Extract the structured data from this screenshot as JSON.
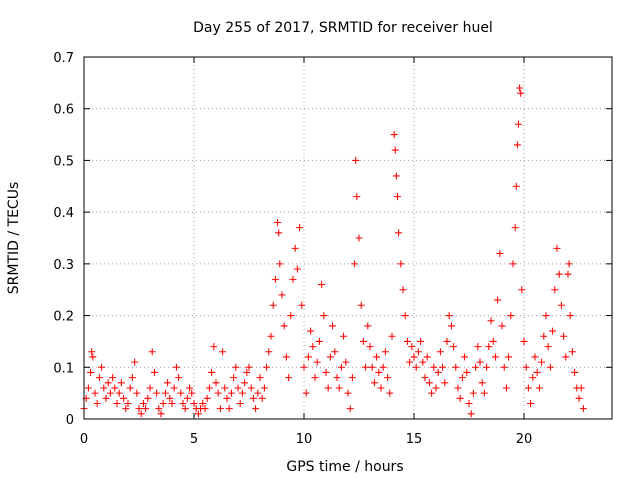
{
  "chart_data": {
    "type": "scatter",
    "title": "Day 255 of 2017, SRMTID for receiver huel",
    "xlabel": "GPS time / hours",
    "ylabel": "SRMTID / TECUs",
    "xlim": [
      0,
      24
    ],
    "ylim": [
      0,
      0.7
    ],
    "xticks": [
      0,
      5,
      10,
      15,
      20
    ],
    "yticks": [
      0,
      0.1,
      0.2,
      0.3,
      0.4,
      0.5,
      0.6,
      0.7
    ],
    "xtick_labels": [
      "0",
      "5",
      "10",
      "15",
      "20"
    ],
    "ytick_labels": [
      "0",
      "0.1",
      "0.2",
      "0.3",
      "0.4",
      "0.5",
      "0.6",
      "0.7"
    ],
    "grid": true,
    "marker": "+",
    "color": "#ff0000",
    "series": [
      {
        "name": "SRMTID",
        "points": [
          [
            0.0,
            0.02
          ],
          [
            0.1,
            0.04
          ],
          [
            0.2,
            0.06
          ],
          [
            0.3,
            0.09
          ],
          [
            0.35,
            0.13
          ],
          [
            0.4,
            0.12
          ],
          [
            0.5,
            0.05
          ],
          [
            0.6,
            0.03
          ],
          [
            0.7,
            0.08
          ],
          [
            0.8,
            0.1
          ],
          [
            0.9,
            0.06
          ],
          [
            1.0,
            0.04
          ],
          [
            1.1,
            0.07
          ],
          [
            1.2,
            0.05
          ],
          [
            1.3,
            0.08
          ],
          [
            1.4,
            0.06
          ],
          [
            1.5,
            0.03
          ],
          [
            1.6,
            0.05
          ],
          [
            1.7,
            0.07
          ],
          [
            1.8,
            0.04
          ],
          [
            1.9,
            0.02
          ],
          [
            2.0,
            0.03
          ],
          [
            2.1,
            0.06
          ],
          [
            2.2,
            0.08
          ],
          [
            2.3,
            0.11
          ],
          [
            2.4,
            0.05
          ],
          [
            2.5,
            0.02
          ],
          [
            2.6,
            0.01
          ],
          [
            2.7,
            0.03
          ],
          [
            2.8,
            0.02
          ],
          [
            2.9,
            0.04
          ],
          [
            3.0,
            0.06
          ],
          [
            3.1,
            0.13
          ],
          [
            3.2,
            0.09
          ],
          [
            3.3,
            0.05
          ],
          [
            3.4,
            0.02
          ],
          [
            3.5,
            0.01
          ],
          [
            3.6,
            0.03
          ],
          [
            3.7,
            0.05
          ],
          [
            3.8,
            0.07
          ],
          [
            3.9,
            0.04
          ],
          [
            4.0,
            0.03
          ],
          [
            4.1,
            0.06
          ],
          [
            4.2,
            0.1
          ],
          [
            4.3,
            0.08
          ],
          [
            4.4,
            0.05
          ],
          [
            4.5,
            0.03
          ],
          [
            4.6,
            0.02
          ],
          [
            4.7,
            0.04
          ],
          [
            4.8,
            0.06
          ],
          [
            4.9,
            0.05
          ],
          [
            5.0,
            0.03
          ],
          [
            5.1,
            0.02
          ],
          [
            5.2,
            0.01
          ],
          [
            5.3,
            0.02
          ],
          [
            5.4,
            0.03
          ],
          [
            5.5,
            0.02
          ],
          [
            5.6,
            0.04
          ],
          [
            5.7,
            0.06
          ],
          [
            5.8,
            0.09
          ],
          [
            5.9,
            0.14
          ],
          [
            6.0,
            0.07
          ],
          [
            6.1,
            0.05
          ],
          [
            6.2,
            0.02
          ],
          [
            6.3,
            0.13
          ],
          [
            6.4,
            0.06
          ],
          [
            6.5,
            0.04
          ],
          [
            6.6,
            0.02
          ],
          [
            6.7,
            0.05
          ],
          [
            6.8,
            0.08
          ],
          [
            6.9,
            0.1
          ],
          [
            7.0,
            0.06
          ],
          [
            7.1,
            0.03
          ],
          [
            7.2,
            0.05
          ],
          [
            7.3,
            0.07
          ],
          [
            7.4,
            0.09
          ],
          [
            7.5,
            0.1
          ],
          [
            7.6,
            0.06
          ],
          [
            7.7,
            0.04
          ],
          [
            7.8,
            0.02
          ],
          [
            7.9,
            0.05
          ],
          [
            8.0,
            0.08
          ],
          [
            8.1,
            0.04
          ],
          [
            8.2,
            0.06
          ],
          [
            8.3,
            0.1
          ],
          [
            8.4,
            0.13
          ],
          [
            8.5,
            0.16
          ],
          [
            8.6,
            0.22
          ],
          [
            8.7,
            0.27
          ],
          [
            8.8,
            0.38
          ],
          [
            8.85,
            0.36
          ],
          [
            8.9,
            0.3
          ],
          [
            9.0,
            0.24
          ],
          [
            9.1,
            0.18
          ],
          [
            9.2,
            0.12
          ],
          [
            9.3,
            0.08
          ],
          [
            9.4,
            0.2
          ],
          [
            9.5,
            0.27
          ],
          [
            9.6,
            0.33
          ],
          [
            9.7,
            0.29
          ],
          [
            9.8,
            0.37
          ],
          [
            9.9,
            0.22
          ],
          [
            10.0,
            0.1
          ],
          [
            10.1,
            0.05
          ],
          [
            10.2,
            0.12
          ],
          [
            10.3,
            0.17
          ],
          [
            10.4,
            0.14
          ],
          [
            10.5,
            0.08
          ],
          [
            10.6,
            0.11
          ],
          [
            10.7,
            0.15
          ],
          [
            10.8,
            0.26
          ],
          [
            10.9,
            0.2
          ],
          [
            11.0,
            0.09
          ],
          [
            11.1,
            0.06
          ],
          [
            11.2,
            0.12
          ],
          [
            11.3,
            0.18
          ],
          [
            11.4,
            0.13
          ],
          [
            11.5,
            0.08
          ],
          [
            11.6,
            0.06
          ],
          [
            11.7,
            0.1
          ],
          [
            11.8,
            0.16
          ],
          [
            11.9,
            0.11
          ],
          [
            12.0,
            0.05
          ],
          [
            12.1,
            0.02
          ],
          [
            12.2,
            0.08
          ],
          [
            12.3,
            0.3
          ],
          [
            12.35,
            0.5
          ],
          [
            12.4,
            0.43
          ],
          [
            12.5,
            0.35
          ],
          [
            12.6,
            0.22
          ],
          [
            12.7,
            0.15
          ],
          [
            12.8,
            0.1
          ],
          [
            12.9,
            0.18
          ],
          [
            13.0,
            0.14
          ],
          [
            13.1,
            0.1
          ],
          [
            13.2,
            0.07
          ],
          [
            13.3,
            0.12
          ],
          [
            13.4,
            0.09
          ],
          [
            13.5,
            0.06
          ],
          [
            13.6,
            0.1
          ],
          [
            13.7,
            0.13
          ],
          [
            13.8,
            0.08
          ],
          [
            13.9,
            0.05
          ],
          [
            14.0,
            0.16
          ],
          [
            14.1,
            0.55
          ],
          [
            14.15,
            0.52
          ],
          [
            14.2,
            0.47
          ],
          [
            14.25,
            0.43
          ],
          [
            14.3,
            0.36
          ],
          [
            14.4,
            0.3
          ],
          [
            14.5,
            0.25
          ],
          [
            14.6,
            0.2
          ],
          [
            14.7,
            0.15
          ],
          [
            14.8,
            0.11
          ],
          [
            14.9,
            0.14
          ],
          [
            15.0,
            0.12
          ],
          [
            15.1,
            0.1
          ],
          [
            15.2,
            0.13
          ],
          [
            15.3,
            0.15
          ],
          [
            15.4,
            0.11
          ],
          [
            15.5,
            0.08
          ],
          [
            15.6,
            0.12
          ],
          [
            15.7,
            0.07
          ],
          [
            15.8,
            0.05
          ],
          [
            15.9,
            0.1
          ],
          [
            16.0,
            0.06
          ],
          [
            16.1,
            0.09
          ],
          [
            16.2,
            0.13
          ],
          [
            16.3,
            0.1
          ],
          [
            16.4,
            0.07
          ],
          [
            16.5,
            0.15
          ],
          [
            16.6,
            0.2
          ],
          [
            16.7,
            0.18
          ],
          [
            16.8,
            0.14
          ],
          [
            16.9,
            0.1
          ],
          [
            17.0,
            0.06
          ],
          [
            17.1,
            0.04
          ],
          [
            17.2,
            0.08
          ],
          [
            17.3,
            0.12
          ],
          [
            17.4,
            0.09
          ],
          [
            17.5,
            0.03
          ],
          [
            17.6,
            0.01
          ],
          [
            17.7,
            0.05
          ],
          [
            17.8,
            0.1
          ],
          [
            17.9,
            0.14
          ],
          [
            18.0,
            0.11
          ],
          [
            18.1,
            0.07
          ],
          [
            18.2,
            0.05
          ],
          [
            18.3,
            0.1
          ],
          [
            18.4,
            0.14
          ],
          [
            18.5,
            0.19
          ],
          [
            18.6,
            0.15
          ],
          [
            18.7,
            0.12
          ],
          [
            18.8,
            0.23
          ],
          [
            18.9,
            0.32
          ],
          [
            19.0,
            0.18
          ],
          [
            19.1,
            0.1
          ],
          [
            19.2,
            0.06
          ],
          [
            19.3,
            0.12
          ],
          [
            19.4,
            0.2
          ],
          [
            19.5,
            0.3
          ],
          [
            19.6,
            0.37
          ],
          [
            19.65,
            0.45
          ],
          [
            19.7,
            0.53
          ],
          [
            19.75,
            0.57
          ],
          [
            19.8,
            0.64
          ],
          [
            19.85,
            0.63
          ],
          [
            19.9,
            0.25
          ],
          [
            20.0,
            0.15
          ],
          [
            20.1,
            0.1
          ],
          [
            20.2,
            0.06
          ],
          [
            20.3,
            0.03
          ],
          [
            20.4,
            0.08
          ],
          [
            20.5,
            0.12
          ],
          [
            20.6,
            0.09
          ],
          [
            20.7,
            0.06
          ],
          [
            20.8,
            0.11
          ],
          [
            20.9,
            0.16
          ],
          [
            21.0,
            0.2
          ],
          [
            21.1,
            0.14
          ],
          [
            21.2,
            0.1
          ],
          [
            21.3,
            0.17
          ],
          [
            21.4,
            0.25
          ],
          [
            21.5,
            0.33
          ],
          [
            21.6,
            0.28
          ],
          [
            21.7,
            0.22
          ],
          [
            21.8,
            0.16
          ],
          [
            21.9,
            0.12
          ],
          [
            22.0,
            0.28
          ],
          [
            22.05,
            0.3
          ],
          [
            22.1,
            0.2
          ],
          [
            22.2,
            0.13
          ],
          [
            22.3,
            0.09
          ],
          [
            22.4,
            0.06
          ],
          [
            22.5,
            0.04
          ],
          [
            22.6,
            0.06
          ],
          [
            22.7,
            0.02
          ]
        ]
      }
    ]
  }
}
